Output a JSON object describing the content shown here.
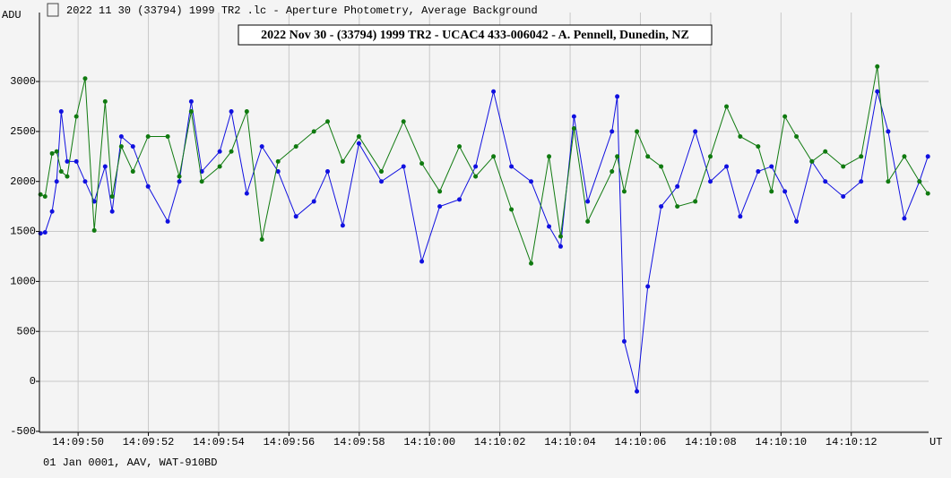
{
  "chart_data": {
    "type": "line",
    "window_title": "2022 11 30 (33794) 1999 TR2 .lc - Aperture Photometry, Average Background",
    "title": "2022 Nov 30 - (33794) 1999 TR2 - UCAC4 433-006042 - A. Pennell, Dunedin, NZ",
    "ylabel": "ADU",
    "xlabel": "UT",
    "footer": "01 Jan 0001, AAV, WAT-910BD",
    "grid": true,
    "xlim": [
      48.9,
      74.2
    ],
    "ylim": [
      -510,
      3690
    ],
    "yticks": [
      -500,
      0,
      500,
      1000,
      1500,
      2000,
      2500,
      3000
    ],
    "xticks": [
      {
        "value": 50,
        "label": "14:09:50"
      },
      {
        "value": 52,
        "label": "14:09:52"
      },
      {
        "value": 54,
        "label": "14:09:54"
      },
      {
        "value": 56,
        "label": "14:09:56"
      },
      {
        "value": 58,
        "label": "14:09:58"
      },
      {
        "value": 60,
        "label": "14:10:00"
      },
      {
        "value": 62,
        "label": "14:10:02"
      },
      {
        "value": 64,
        "label": "14:10:04"
      },
      {
        "value": 66,
        "label": "14:10:06"
      },
      {
        "value": 68,
        "label": "14:10:08"
      },
      {
        "value": 70,
        "label": "14:10:10"
      },
      {
        "value": 72,
        "label": "14:10:12"
      }
    ],
    "x": [
      48.93,
      49.06,
      49.26,
      49.39,
      49.52,
      49.69,
      49.95,
      50.2,
      50.46,
      50.77,
      50.97,
      51.23,
      51.56,
      51.99,
      52.55,
      52.88,
      53.22,
      53.52,
      54.03,
      54.36,
      54.8,
      55.23,
      55.69,
      56.2,
      56.71,
      57.1,
      57.53,
      57.99,
      58.63,
      59.26,
      59.78,
      60.29,
      60.85,
      61.31,
      61.82,
      62.33,
      62.89,
      63.4,
      63.73,
      64.11,
      64.5,
      65.19,
      65.34,
      65.54,
      65.9,
      66.21,
      66.59,
      67.05,
      67.56,
      67.99,
      68.45,
      68.84,
      69.35,
      69.73,
      70.11,
      70.44,
      70.88,
      71.26,
      71.77,
      72.28,
      72.74,
      73.05,
      73.51,
      73.94,
      74.18
    ],
    "series": [
      {
        "color": "#1010e0",
        "values": [
          1480,
          1490,
          1700,
          2000,
          2700,
          2200,
          2200,
          2000,
          1800,
          2150,
          1700,
          2450,
          2350,
          1950,
          1600,
          2000,
          2800,
          2100,
          2300,
          2700,
          1880,
          2350,
          2100,
          1650,
          1800,
          2100,
          1560,
          2380,
          2000,
          2150,
          1200,
          1750,
          1820,
          2150,
          2900,
          2150,
          2000,
          1550,
          1350,
          2650,
          1800,
          2500,
          2850,
          400,
          -100,
          950,
          1750,
          1950,
          2500,
          2000,
          2150,
          1650,
          2100,
          2150,
          1900,
          1600,
          2200,
          2000,
          1850,
          2000,
          2900,
          2500,
          1630,
          2000,
          2250
        ]
      },
      {
        "color": "#107a10",
        "values": [
          1870,
          1850,
          2280,
          2300,
          2100,
          2050,
          2650,
          3030,
          1510,
          2800,
          1850,
          2350,
          2100,
          2450,
          2450,
          2050,
          2700,
          2000,
          2150,
          2300,
          2700,
          1420,
          2200,
          2350,
          2500,
          2600,
          2200,
          2450,
          2100,
          2600,
          2180,
          1900,
          2350,
          2050,
          2250,
          1720,
          1180,
          2250,
          1450,
          2530,
          1600,
          2100,
          2250,
          1900,
          2500,
          2250,
          2150,
          1750,
          1800,
          2250,
          2750,
          2450,
          2350,
          1900,
          2650,
          2450,
          2200,
          2300,
          2150,
          2250,
          3150,
          2000,
          2250,
          2000,
          1880
        ]
      }
    ]
  }
}
